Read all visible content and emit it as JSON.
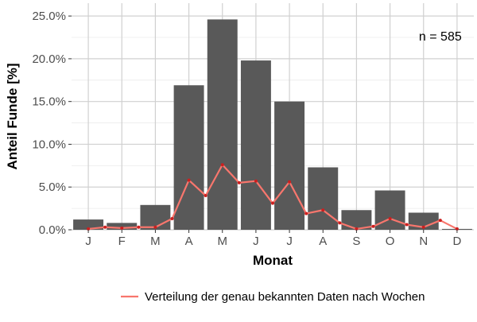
{
  "chart_data": {
    "type": "bar",
    "categories": [
      "J",
      "F",
      "M",
      "A",
      "M",
      "J",
      "J",
      "A",
      "S",
      "O",
      "N",
      "D"
    ],
    "values": [
      1.2,
      0.8,
      2.9,
      16.9,
      24.6,
      19.8,
      15.0,
      7.3,
      2.3,
      4.6,
      2.0,
      0.1
    ],
    "ylim": [
      0,
      26.5
    ],
    "yticks": [
      0,
      5,
      10,
      15,
      20,
      25
    ],
    "ytick_labels": [
      "0.0%",
      "5.0%",
      "10.0%",
      "15.0%",
      "20.0%",
      "25.0%"
    ],
    "xlabel": "Monat",
    "ylabel": "Anteil Funde [%]",
    "annotation": "n = 585",
    "grid": true,
    "legend_position": "bottom",
    "bar_color": "#595959",
    "series": [
      {
        "name": "Verteilung der genau bekannten Daten nach Wochen",
        "type": "line",
        "color": "#f8766d",
        "point_color": "#cc1f1f",
        "x": [
          1,
          1.5,
          2,
          2.5,
          3,
          3.5,
          4,
          4.5,
          5,
          5.5,
          6,
          6.5,
          7,
          7.5,
          8,
          8.5,
          9,
          9.5,
          10,
          10.5,
          11,
          11.5,
          12
        ],
        "values": [
          0.1,
          0.3,
          0.2,
          0.3,
          0.3,
          1.3,
          5.8,
          4.0,
          7.6,
          5.5,
          5.7,
          3.1,
          5.6,
          1.9,
          2.3,
          0.8,
          0.1,
          0.4,
          1.3,
          0.6,
          0.3,
          1.1,
          0.1
        ]
      }
    ]
  }
}
